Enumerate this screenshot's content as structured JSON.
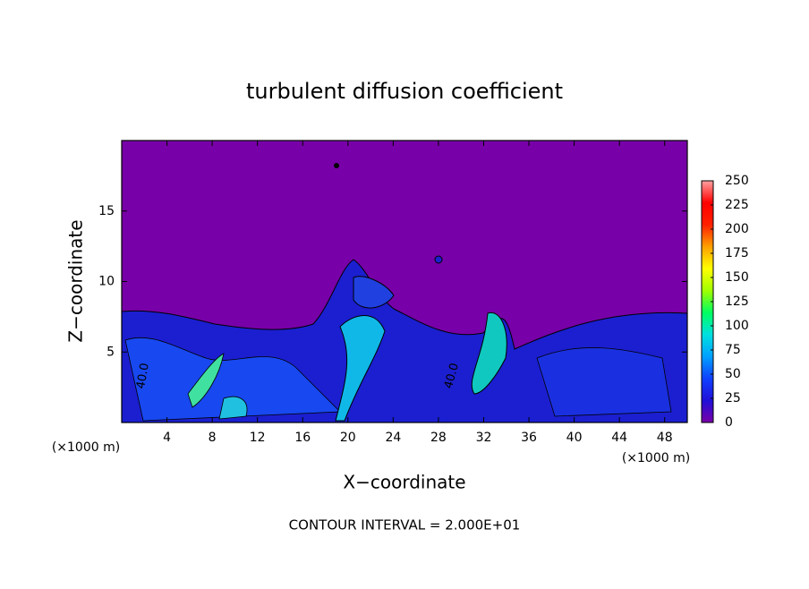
{
  "chart_data": {
    "type": "contour",
    "title": "turbulent diffusion coefficient",
    "x_label": "X−coordinate",
    "y_label": "Z−coordinate",
    "x_unit_left": "(×1000 m)",
    "x_unit_right": "(×1000 m)",
    "footnote": "CONTOUR INTERVAL = 2.000E+01",
    "contour_labels": [
      "40.0",
      "40.0"
    ],
    "xlim": [
      0,
      50
    ],
    "xticks": [
      4,
      8,
      12,
      16,
      20,
      24,
      28,
      32,
      36,
      40,
      44,
      48
    ],
    "ylim": [
      0,
      20
    ],
    "yticks": [
      5,
      10,
      15
    ],
    "clim": [
      0,
      250
    ],
    "cticks": [
      0,
      25,
      50,
      75,
      100,
      125,
      150,
      175,
      200,
      225,
      250
    ],
    "colormap": [
      "#7800a8",
      "#2010d8",
      "#1040ff",
      "#00a0ff",
      "#00e0e0",
      "#00ff60",
      "#a0ff00",
      "#ffff00",
      "#ffa000",
      "#ff2000",
      "#ff0000",
      "#ffa0a0"
    ]
  }
}
